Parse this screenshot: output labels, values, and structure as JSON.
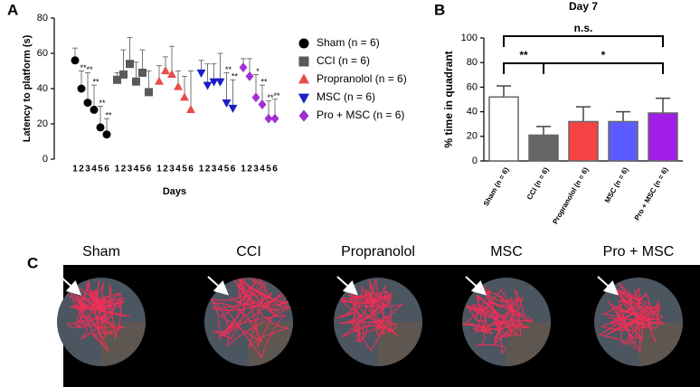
{
  "panel_labels": [
    "A",
    "B",
    "C"
  ],
  "chart_data": [
    {
      "type": "dot",
      "ylabel": "Latency to platform (s)",
      "xlabel": "Days",
      "categories": [
        "1",
        "2",
        "3",
        "4",
        "5",
        "6"
      ],
      "ylim": [
        0,
        80
      ],
      "yticks": [
        0,
        20,
        40,
        60,
        80
      ],
      "series": [
        {
          "name": "Sham (n = 6)",
          "color": "#000000",
          "marker": "circle",
          "values": [
            56,
            40,
            32,
            28,
            18,
            14
          ],
          "errors": [
            7,
            10,
            17,
            14,
            12,
            9
          ],
          "stars": [
            null,
            "**",
            "**",
            "**",
            "**",
            "**"
          ]
        },
        {
          "name": "CCI (n = 6)",
          "color": "#595959",
          "marker": "square",
          "values": [
            45,
            48,
            54,
            44,
            49,
            38
          ],
          "errors": [
            4,
            14,
            15,
            11,
            13,
            12
          ],
          "stars": [
            null,
            null,
            null,
            null,
            null,
            null
          ]
        },
        {
          "name": "Propranolol (n = 6)",
          "color": "#e94b4b",
          "marker": "triangle-up",
          "values": [
            44,
            50,
            48,
            41,
            35,
            28
          ],
          "errors": [
            9,
            8,
            16,
            9,
            12,
            22
          ],
          "stars": [
            null,
            null,
            null,
            null,
            null,
            null
          ]
        },
        {
          "name": "MSC (n = 6)",
          "color": "#1c1cc8",
          "marker": "triangle-down",
          "values": [
            49,
            42,
            44,
            44,
            32,
            29
          ],
          "errors": [
            7,
            12,
            10,
            16,
            17,
            16
          ],
          "stars": [
            null,
            null,
            null,
            null,
            "**",
            "**"
          ]
        },
        {
          "name": "Pro + MSC (n = 6)",
          "color": "#a22fd4",
          "marker": "diamond",
          "values": [
            52,
            47,
            35,
            31,
            23,
            23
          ],
          "errors": [
            5,
            10,
            13,
            11,
            10,
            11
          ],
          "stars": [
            null,
            null,
            "*",
            "**",
            "**",
            "**"
          ]
        }
      ]
    },
    {
      "type": "bar",
      "title": "Day 7",
      "ylabel": "% time in quadrant",
      "categories": [
        "Sham (n = 6)",
        "CCI (n = 6)",
        "Propranolol (n = 6)",
        "MSC (n = 6)",
        "Pro + MSC (n = 6)"
      ],
      "values": [
        52,
        21,
        32,
        32,
        39
      ],
      "errors": [
        9,
        7,
        12,
        8,
        12
      ],
      "colors": [
        "#ffffff",
        "#666666",
        "#f54343",
        "#5b5bff",
        "#a21ee6"
      ],
      "ylim": [
        0,
        100
      ],
      "yticks": [
        0,
        20,
        40,
        60,
        80,
        100
      ],
      "brackets": [
        {
          "from": 0,
          "to": 1,
          "label": "**"
        },
        {
          "from": 1,
          "to": 4,
          "label": "*"
        },
        {
          "from": 0,
          "to": 4,
          "label": "n.s."
        }
      ]
    }
  ],
  "tracks": {
    "labels": [
      "Sham",
      "CCI",
      "Propranolol",
      "MSC",
      "Pro + MSC"
    ]
  }
}
